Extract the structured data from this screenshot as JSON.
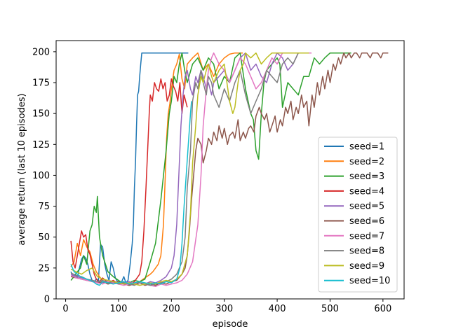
{
  "chart_data": {
    "type": "line",
    "title": "",
    "xlabel": "episode",
    "ylabel": "average return (last 10 episodes)",
    "xlim": [
      -18,
      640
    ],
    "ylim": [
      0,
      209
    ],
    "xticks": [
      0,
      100,
      200,
      300,
      400,
      500,
      600
    ],
    "yticks": [
      0,
      25,
      50,
      75,
      100,
      125,
      150,
      175,
      200
    ],
    "grid": false,
    "legend_position": "lower-right",
    "series": [
      {
        "name": "seed=1",
        "color": "#1f77b4",
        "x": [
          10,
          14,
          18,
          22,
          26,
          30,
          34,
          38,
          42,
          46,
          50,
          54,
          58,
          62,
          66,
          70,
          74,
          78,
          82,
          86,
          90,
          94,
          98,
          102,
          106,
          110,
          114,
          118,
          122,
          126,
          128,
          130,
          132,
          134,
          136,
          138,
          140,
          142,
          144,
          146,
          148,
          150,
          160,
          180,
          200,
          220,
          232
        ],
        "y": [
          22,
          18,
          20,
          17,
          25,
          32,
          35,
          33,
          28,
          20,
          15,
          14,
          16,
          15,
          44,
          42,
          28,
          20,
          15,
          30,
          25,
          17,
          14,
          12,
          14,
          18,
          13,
          15,
          28,
          45,
          60,
          90,
          110,
          140,
          165,
          168,
          180,
          190,
          199,
          199,
          199,
          199,
          199,
          199,
          199,
          199,
          199
        ]
      },
      {
        "name": "seed=2",
        "color": "#ff7f0e",
        "x": [
          10,
          16,
          22,
          28,
          34,
          40,
          46,
          52,
          58,
          64,
          70,
          80,
          90,
          100,
          110,
          120,
          130,
          140,
          150,
          160,
          165,
          170,
          175,
          180,
          185,
          188,
          191,
          194,
          197,
          200,
          205,
          210,
          215,
          220,
          225,
          230,
          240,
          250,
          260,
          270,
          280,
          290,
          300,
          310,
          320,
          325,
          330,
          335
        ],
        "y": [
          26,
          30,
          45,
          35,
          48,
          42,
          38,
          28,
          22,
          18,
          15,
          13,
          14,
          12,
          13,
          11,
          12,
          14,
          17,
          20,
          22,
          25,
          28,
          35,
          60,
          95,
          130,
          150,
          158,
          170,
          185,
          190,
          198,
          178,
          170,
          190,
          195,
          199,
          185,
          190,
          180,
          190,
          195,
          198,
          199,
          199,
          199,
          199
        ]
      },
      {
        "name": "seed=3",
        "color": "#2ca02c",
        "x": [
          10,
          16,
          22,
          28,
          34,
          40,
          46,
          50,
          54,
          58,
          60,
          64,
          70,
          80,
          90,
          100,
          110,
          120,
          130,
          140,
          150,
          160,
          170,
          180,
          190,
          196,
          200,
          205,
          210,
          215,
          220,
          225,
          230,
          240,
          250,
          260,
          270,
          280,
          290,
          300,
          310,
          320,
          330,
          340,
          350,
          355,
          360,
          365,
          370,
          375,
          380,
          390,
          400,
          405,
          410,
          420,
          430,
          440,
          450,
          460,
          470,
          480,
          490,
          500,
          510,
          520,
          530,
          540
        ],
        "y": [
          15,
          18,
          22,
          25,
          35,
          28,
          55,
          60,
          75,
          70,
          83,
          50,
          35,
          22,
          18,
          15,
          12,
          13,
          15,
          14,
          16,
          30,
          45,
          80,
          120,
          150,
          160,
          180,
          175,
          190,
          199,
          185,
          175,
          190,
          195,
          185,
          195,
          190,
          170,
          180,
          175,
          195,
          199,
          170,
          150,
          145,
          120,
          113,
          150,
          175,
          185,
          190,
          195,
          190,
          155,
          175,
          170,
          165,
          180,
          180,
          195,
          190,
          195,
          199,
          199,
          199,
          199,
          199
        ]
      },
      {
        "name": "seed=4",
        "color": "#d62728",
        "x": [
          10,
          14,
          18,
          22,
          26,
          30,
          34,
          38,
          42,
          46,
          50,
          54,
          58,
          62,
          66,
          70,
          80,
          90,
          100,
          110,
          120,
          130,
          140,
          144,
          148,
          152,
          156,
          158,
          160,
          164,
          168,
          172,
          176,
          180,
          184,
          188,
          192,
          196,
          200,
          204,
          208,
          212,
          216,
          220,
          224,
          230
        ],
        "y": [
          47,
          30,
          25,
          35,
          45,
          55,
          50,
          52,
          40,
          36,
          28,
          20,
          16,
          14,
          15,
          17,
          13,
          15,
          12,
          14,
          11,
          14,
          20,
          30,
          55,
          90,
          130,
          150,
          165,
          160,
          175,
          170,
          168,
          178,
          170,
          175,
          160,
          165,
          178,
          172,
          168,
          160,
          175,
          150,
          165,
          155
        ]
      },
      {
        "name": "seed=5",
        "color": "#9467bd",
        "x": [
          10,
          20,
          30,
          40,
          50,
          60,
          70,
          80,
          90,
          100,
          110,
          120,
          130,
          140,
          150,
          160,
          170,
          180,
          190,
          200,
          205,
          210,
          214,
          218,
          222,
          226,
          230,
          236,
          240,
          246,
          250,
          256,
          260,
          266,
          270,
          276,
          280,
          290,
          300,
          310,
          320,
          330,
          340,
          350,
          360,
          370,
          380,
          390,
          400,
          410,
          420,
          430,
          440,
          450,
          460
        ],
        "y": [
          20,
          18,
          17,
          16,
          15,
          14,
          13,
          15,
          14,
          12,
          13,
          14,
          12,
          13,
          12,
          14,
          13,
          15,
          18,
          25,
          35,
          60,
          100,
          140,
          165,
          180,
          185,
          170,
          165,
          180,
          175,
          185,
          180,
          170,
          175,
          165,
          175,
          180,
          185,
          175,
          185,
          195,
          199,
          185,
          190,
          180,
          175,
          190,
          199,
          195,
          185,
          190,
          199,
          199,
          199
        ]
      },
      {
        "name": "seed=6",
        "color": "#8c564b",
        "x": [
          10,
          20,
          30,
          40,
          50,
          60,
          70,
          80,
          90,
          100,
          110,
          120,
          130,
          140,
          150,
          160,
          170,
          180,
          190,
          200,
          210,
          220,
          226,
          230,
          234,
          238,
          242,
          246,
          250,
          256,
          260,
          266,
          270,
          276,
          280,
          286,
          290,
          296,
          300,
          306,
          310,
          316,
          320,
          326,
          330,
          336,
          340,
          346,
          350,
          356,
          360,
          366,
          370,
          376,
          380,
          386,
          390,
          396,
          400,
          406,
          410,
          416,
          420,
          426,
          430,
          436,
          440,
          446,
          450,
          456,
          460,
          466,
          470,
          476,
          480,
          486,
          490,
          496,
          500,
          506,
          510,
          516,
          520,
          526,
          530,
          536,
          540,
          546,
          550,
          556,
          560,
          566,
          570,
          576,
          580,
          586,
          590,
          596,
          600,
          606,
          610
        ],
        "y": [
          18,
          17,
          16,
          15,
          14,
          13,
          14,
          12,
          13,
          14,
          12,
          11,
          12,
          13,
          11,
          12,
          11,
          13,
          12,
          14,
          15,
          20,
          25,
          35,
          55,
          80,
          100,
          120,
          130,
          125,
          110,
          120,
          130,
          125,
          135,
          128,
          140,
          130,
          138,
          125,
          132,
          135,
          130,
          145,
          128,
          135,
          130,
          138,
          140,
          135,
          148,
          155,
          150,
          145,
          150,
          135,
          140,
          148,
          135,
          145,
          140,
          155,
          150,
          160,
          145,
          155,
          150,
          165,
          155,
          160,
          140,
          165,
          155,
          175,
          165,
          180,
          170,
          185,
          175,
          190,
          185,
          195,
          190,
          199,
          195,
          199,
          195,
          199,
          199,
          195,
          199,
          199,
          199,
          195,
          199,
          199,
          199,
          195,
          199,
          199,
          199
        ]
      },
      {
        "name": "seed=7",
        "color": "#e377c2",
        "x": [
          10,
          20,
          30,
          40,
          50,
          60,
          70,
          80,
          90,
          100,
          110,
          120,
          130,
          140,
          150,
          160,
          170,
          180,
          190,
          200,
          210,
          220,
          230,
          240,
          250,
          256,
          260,
          266,
          270,
          276,
          280,
          290,
          300,
          310,
          320,
          330,
          340,
          350,
          360,
          370,
          380,
          390,
          400,
          410,
          420,
          430,
          440,
          450,
          460,
          465
        ],
        "y": [
          19,
          17,
          16,
          15,
          14,
          13,
          12,
          14,
          13,
          12,
          11,
          12,
          13,
          11,
          12,
          11,
          10,
          12,
          11,
          12,
          13,
          15,
          20,
          30,
          60,
          100,
          140,
          170,
          185,
          195,
          199,
          190,
          185,
          175,
          185,
          195,
          190,
          180,
          170,
          175,
          185,
          195,
          190,
          199,
          199,
          199,
          199,
          199,
          199,
          199
        ]
      },
      {
        "name": "seed=8",
        "color": "#7f7f7f",
        "x": [
          10,
          20,
          30,
          40,
          50,
          60,
          70,
          80,
          90,
          100,
          110,
          120,
          130,
          140,
          150,
          160,
          170,
          180,
          190,
          200,
          210,
          220,
          226,
          230,
          236,
          240,
          246,
          250,
          256,
          260,
          266,
          270,
          276,
          280,
          290,
          300,
          310,
          320,
          330,
          340,
          350,
          360,
          370,
          380,
          390,
          400,
          410,
          420,
          430,
          440,
          450,
          460
        ],
        "y": [
          21,
          19,
          18,
          16,
          15,
          14,
          15,
          13,
          14,
          12,
          13,
          12,
          11,
          13,
          12,
          11,
          12,
          13,
          14,
          16,
          20,
          30,
          50,
          90,
          120,
          160,
          175,
          170,
          185,
          175,
          165,
          180,
          175,
          165,
          155,
          170,
          160,
          175,
          185,
          165,
          150,
          160,
          170,
          185,
          180,
          175,
          190,
          195,
          190,
          199,
          199,
          199
        ]
      },
      {
        "name": "seed=9",
        "color": "#bcbd22",
        "x": [
          10,
          20,
          30,
          40,
          50,
          60,
          70,
          80,
          90,
          100,
          110,
          120,
          130,
          140,
          150,
          160,
          170,
          180,
          190,
          200,
          210,
          220,
          230,
          236,
          240,
          246,
          250,
          256,
          260,
          266,
          270,
          276,
          280,
          290,
          300,
          310,
          316,
          320,
          326,
          330,
          336,
          340,
          350,
          360,
          370,
          380,
          390,
          400,
          410,
          420,
          430,
          440,
          450,
          460
        ],
        "y": [
          24,
          22,
          20,
          23,
          25,
          18,
          16,
          15,
          14,
          13,
          12,
          13,
          12,
          11,
          12,
          13,
          12,
          14,
          15,
          14,
          16,
          20,
          35,
          70,
          110,
          140,
          165,
          180,
          175,
          185,
          190,
          180,
          175,
          185,
          190,
          160,
          150,
          155,
          175,
          185,
          190,
          199,
          195,
          199,
          190,
          195,
          199,
          199,
          199,
          199,
          199,
          199,
          199,
          199
        ]
      },
      {
        "name": "seed=10",
        "color": "#17becf",
        "x": [
          10,
          16,
          22,
          28,
          34,
          40,
          46,
          52,
          58,
          64,
          70,
          80,
          90,
          100,
          110,
          120,
          130,
          140,
          150,
          160,
          170,
          180,
          190,
          200,
          210,
          216,
          220,
          224,
          228,
          232,
          236,
          238
        ],
        "y": [
          28,
          22,
          20,
          18,
          17,
          16,
          15,
          14,
          12,
          11,
          14,
          13,
          12,
          13,
          14,
          12,
          13,
          14,
          13,
          12,
          13,
          12,
          14,
          13,
          16,
          25,
          45,
          75,
          100,
          125,
          150,
          160
        ]
      }
    ]
  }
}
